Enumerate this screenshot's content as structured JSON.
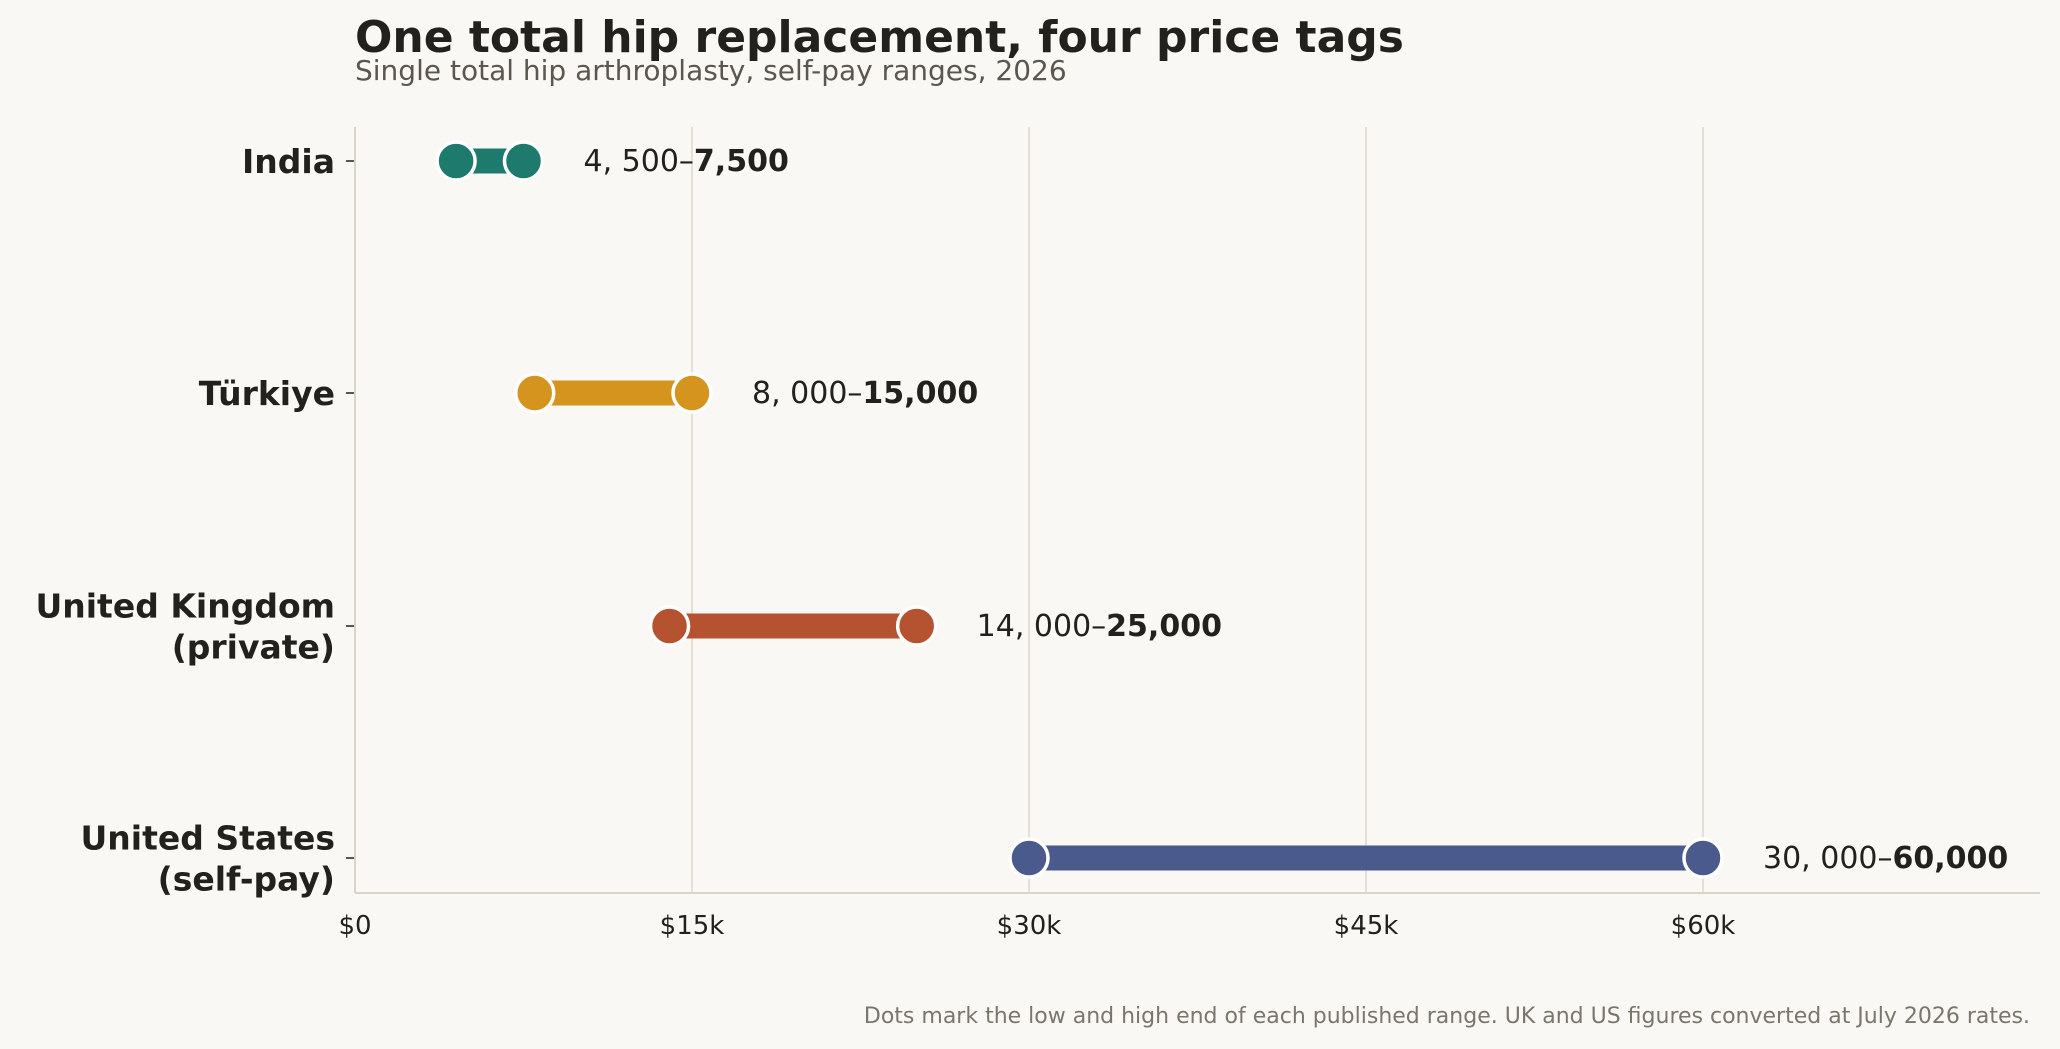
{
  "chart_data": {
    "type": "dumbbell",
    "title": "One total hip replacement, four price tags",
    "subtitle": "Single total hip arthroplasty, self-pay ranges, 2026",
    "xlabel": "",
    "ylabel": "",
    "xlim": [
      0,
      75000
    ],
    "x_ticks": [
      {
        "value": 0,
        "label": "$0"
      },
      {
        "value": 15000,
        "label": "$15k"
      },
      {
        "value": 30000,
        "label": "$30k"
      },
      {
        "value": 45000,
        "label": "$45k"
      },
      {
        "value": 60000,
        "label": "$60k"
      }
    ],
    "grid": "vertical",
    "series": [
      {
        "category": [
          "India"
        ],
        "low": 4500,
        "high": 7500,
        "color": "#1f7a6e",
        "label_low": "4, 500–",
        "label_high": "7,500"
      },
      {
        "category": [
          "Türkiye"
        ],
        "low": 8000,
        "high": 15000,
        "color": "#d4941e",
        "label_low": "8, 000–",
        "label_high": "15,000"
      },
      {
        "category": [
          "United Kingdom",
          "(private)"
        ],
        "low": 14000,
        "high": 25000,
        "color": "#b5522f",
        "label_low": "14, 000–",
        "label_high": "25,000"
      },
      {
        "category": [
          "United States",
          "(self-pay)"
        ],
        "low": 30000,
        "high": 60000,
        "color": "#4b5a8c",
        "label_low": "30, 000–",
        "label_high": "60,000"
      }
    ],
    "footnote": "Dots mark the low and high end of each published range. UK and US figures converted at July 2026 rates."
  }
}
